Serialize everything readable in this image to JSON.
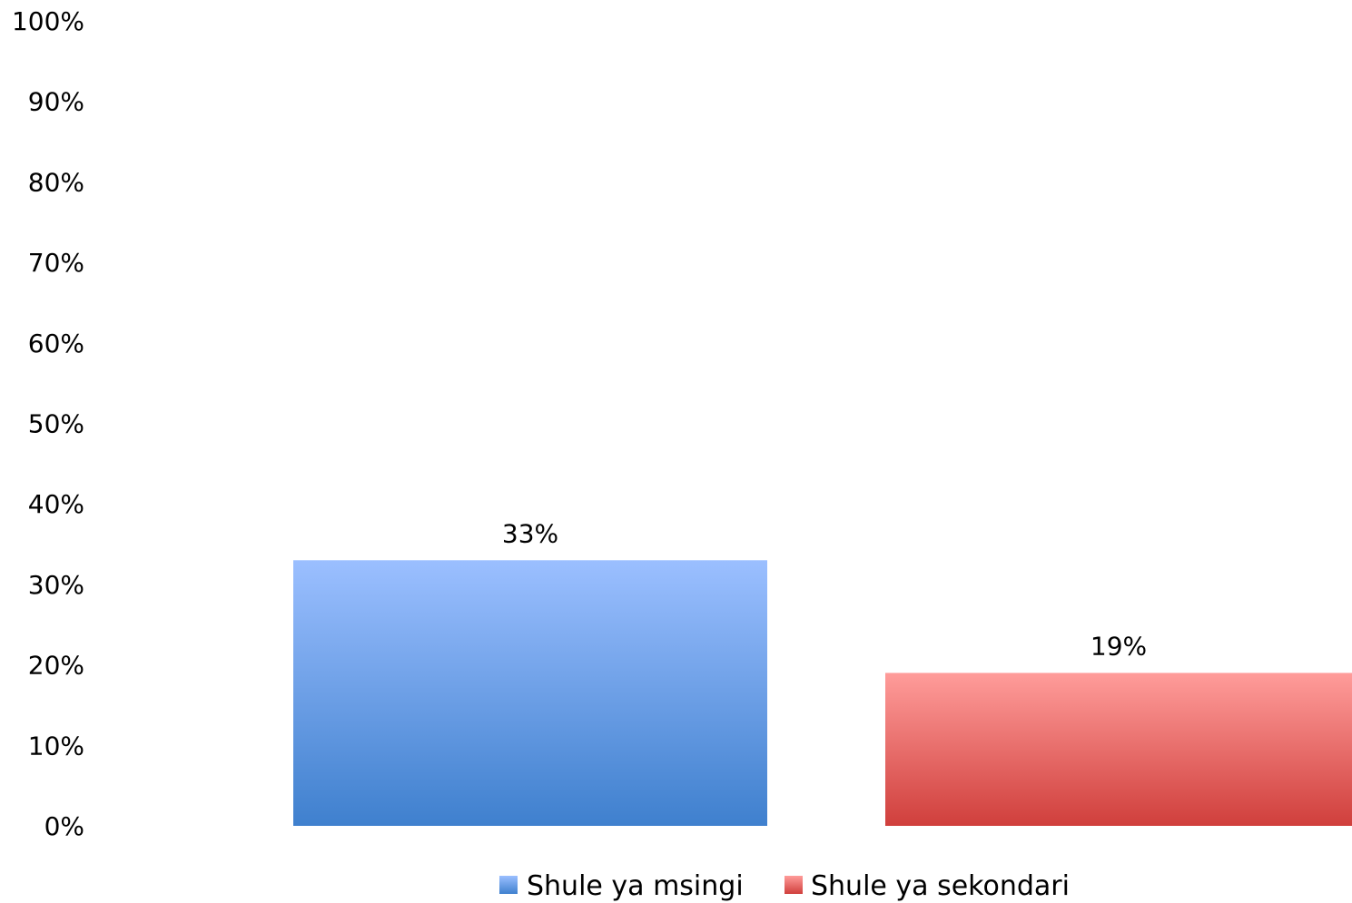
{
  "chart_data": {
    "type": "bar",
    "categories": [
      "Shule ya msingi",
      "Shule ya sekondari"
    ],
    "values": [
      33,
      19
    ],
    "value_labels": [
      "33%",
      "19%"
    ],
    "ylim": [
      0,
      100
    ],
    "y_ticks": [
      0,
      10,
      20,
      30,
      40,
      50,
      60,
      70,
      80,
      90,
      100
    ],
    "y_tick_labels": [
      "0%",
      "10%",
      "20%",
      "30%",
      "40%",
      "50%",
      "60%",
      "70%",
      "80%",
      "90%",
      "100%"
    ],
    "grid": false,
    "legend_position": "bottom",
    "series": [
      {
        "name": "Shule ya msingi",
        "value": 33,
        "color_top": "#9bbfff",
        "color_bottom": "#3f80ce"
      },
      {
        "name": "Shule ya sekondari",
        "value": 19,
        "color_top": "#ff9c9a",
        "color_bottom": "#d03f3c"
      }
    ]
  }
}
